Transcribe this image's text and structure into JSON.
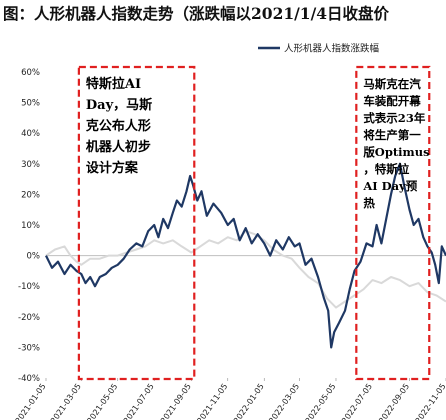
{
  "title": "图：人形机器人指数走势（涨跌幅以2021/1/4日收盘价",
  "chart_data": {
    "type": "line",
    "title": "图：人形机器人指数走势（涨跌幅以2021/1/4日收盘价",
    "xlabel": "",
    "ylabel": "",
    "ylim": [
      -40,
      60
    ],
    "yticks": [
      -40,
      -30,
      -20,
      -10,
      0,
      10,
      20,
      30,
      40,
      50,
      60
    ],
    "ytick_labels": [
      "-40%",
      "-30%",
      "-20%",
      "-10%",
      "0%",
      "10%",
      "20%",
      "30%",
      "40%",
      "50%",
      "60%"
    ],
    "xlim": [
      "2021-01-05",
      "2022-11-05"
    ],
    "xtick_labels": [
      "2021-01-05",
      "2021-03-05",
      "2021-05-05",
      "2021-07-05",
      "2021-09-05",
      "2021-11-05",
      "2022-01-05",
      "2022-03-05",
      "2022-05-05",
      "2022-07-05",
      "2022-09-05",
      "2022-11-05"
    ],
    "grid": false,
    "legend_position": "top-right",
    "series": [
      {
        "name": "人形机器人指数涨跌幅",
        "color": "#1f3864",
        "unit": "%",
        "points": [
          [
            "2021-01-05",
            0
          ],
          [
            "2021-01-15",
            -4
          ],
          [
            "2021-01-25",
            -2
          ],
          [
            "2021-02-05",
            -6
          ],
          [
            "2021-02-15",
            -3
          ],
          [
            "2021-02-25",
            -5
          ],
          [
            "2021-03-05",
            -6
          ],
          [
            "2021-03-12",
            -9
          ],
          [
            "2021-03-20",
            -7
          ],
          [
            "2021-03-28",
            -10
          ],
          [
            "2021-04-05",
            -7
          ],
          [
            "2021-04-15",
            -6
          ],
          [
            "2021-04-25",
            -4
          ],
          [
            "2021-05-05",
            -3
          ],
          [
            "2021-05-15",
            -1
          ],
          [
            "2021-05-25",
            2
          ],
          [
            "2021-06-05",
            4
          ],
          [
            "2021-06-15",
            3
          ],
          [
            "2021-06-25",
            8
          ],
          [
            "2021-07-05",
            10
          ],
          [
            "2021-07-12",
            6
          ],
          [
            "2021-07-20",
            12
          ],
          [
            "2021-07-28",
            9
          ],
          [
            "2021-08-05",
            14
          ],
          [
            "2021-08-12",
            18
          ],
          [
            "2021-08-20",
            16
          ],
          [
            "2021-08-28",
            21
          ],
          [
            "2021-09-03",
            26
          ],
          [
            "2021-09-08",
            23
          ],
          [
            "2021-09-15",
            18
          ],
          [
            "2021-09-22",
            21
          ],
          [
            "2021-10-01",
            13
          ],
          [
            "2021-10-12",
            17
          ],
          [
            "2021-10-25",
            14
          ],
          [
            "2021-11-05",
            10
          ],
          [
            "2021-11-15",
            12
          ],
          [
            "2021-11-25",
            5
          ],
          [
            "2021-12-05",
            9
          ],
          [
            "2021-12-15",
            4
          ],
          [
            "2021-12-25",
            7
          ],
          [
            "2022-01-05",
            4
          ],
          [
            "2022-01-15",
            0
          ],
          [
            "2022-01-25",
            5
          ],
          [
            "2022-02-05",
            2
          ],
          [
            "2022-02-15",
            6
          ],
          [
            "2022-02-25",
            3
          ],
          [
            "2022-03-05",
            4
          ],
          [
            "2022-03-15",
            -3
          ],
          [
            "2022-03-25",
            -1
          ],
          [
            "2022-04-05",
            -7
          ],
          [
            "2022-04-15",
            -14
          ],
          [
            "2022-04-22",
            -18
          ],
          [
            "2022-04-27",
            -30
          ],
          [
            "2022-05-02",
            -25
          ],
          [
            "2022-05-10",
            -22
          ],
          [
            "2022-05-20",
            -18
          ],
          [
            "2022-05-28",
            -11
          ],
          [
            "2022-06-05",
            -5
          ],
          [
            "2022-06-15",
            -2
          ],
          [
            "2022-06-25",
            4
          ],
          [
            "2022-07-05",
            3
          ],
          [
            "2022-07-12",
            10
          ],
          [
            "2022-07-20",
            4
          ],
          [
            "2022-07-28",
            12
          ],
          [
            "2022-08-05",
            20
          ],
          [
            "2022-08-12",
            26
          ],
          [
            "2022-08-20",
            30
          ],
          [
            "2022-08-27",
            23
          ],
          [
            "2022-09-05",
            15
          ],
          [
            "2022-09-12",
            10
          ],
          [
            "2022-09-20",
            12
          ],
          [
            "2022-09-28",
            6
          ],
          [
            "2022-10-05",
            3
          ],
          [
            "2022-10-12",
            1
          ],
          [
            "2022-10-18",
            -3
          ],
          [
            "2022-10-24",
            -9
          ],
          [
            "2022-10-29",
            3
          ],
          [
            "2022-11-05",
            0
          ]
        ]
      },
      {
        "name": "",
        "color": "#d9d9d9",
        "unit": "%",
        "points": [
          [
            "2021-01-05",
            0
          ],
          [
            "2021-01-20",
            2
          ],
          [
            "2021-02-05",
            3
          ],
          [
            "2021-02-15",
            0
          ],
          [
            "2021-02-25",
            -2
          ],
          [
            "2021-03-05",
            -3
          ],
          [
            "2021-03-20",
            -1
          ],
          [
            "2021-04-05",
            -1
          ],
          [
            "2021-04-20",
            0
          ],
          [
            "2021-05-05",
            0
          ],
          [
            "2021-05-20",
            1
          ],
          [
            "2021-06-05",
            2
          ],
          [
            "2021-06-20",
            3
          ],
          [
            "2021-07-05",
            5
          ],
          [
            "2021-07-20",
            4
          ],
          [
            "2021-08-05",
            5
          ],
          [
            "2021-08-20",
            3
          ],
          [
            "2021-09-05",
            1
          ],
          [
            "2021-09-20",
            3
          ],
          [
            "2021-10-05",
            5
          ],
          [
            "2021-10-20",
            4
          ],
          [
            "2021-11-05",
            6
          ],
          [
            "2021-11-20",
            5
          ],
          [
            "2021-12-05",
            8
          ],
          [
            "2021-12-20",
            7
          ],
          [
            "2022-01-05",
            5
          ],
          [
            "2022-01-20",
            2
          ],
          [
            "2022-02-05",
            0
          ],
          [
            "2022-02-20",
            -1
          ],
          [
            "2022-03-05",
            -4
          ],
          [
            "2022-03-20",
            -7
          ],
          [
            "2022-04-05",
            -9
          ],
          [
            "2022-04-20",
            -14
          ],
          [
            "2022-05-05",
            -17
          ],
          [
            "2022-05-20",
            -15
          ],
          [
            "2022-06-05",
            -13
          ],
          [
            "2022-06-20",
            -11
          ],
          [
            "2022-07-05",
            -8
          ],
          [
            "2022-07-20",
            -9
          ],
          [
            "2022-08-05",
            -7
          ],
          [
            "2022-08-20",
            -8
          ],
          [
            "2022-09-05",
            -10
          ],
          [
            "2022-09-20",
            -9
          ],
          [
            "2022-10-05",
            -12
          ],
          [
            "2022-10-20",
            -13
          ],
          [
            "2022-11-05",
            -15
          ]
        ]
      }
    ],
    "annotations": [
      {
        "from": "2021-03-01",
        "to": "2021-09-10",
        "lines": [
          "特斯拉AI",
          "Day，马斯",
          "克公布人形",
          "机器人初步",
          "设计方案"
        ]
      },
      {
        "from": "2022-06-08",
        "to": "2022-10-08",
        "lines": [
          "马斯克在汽",
          "车装配开幕",
          "式表示23年",
          "将生产第一",
          "版Optimus",
          "，特斯拉",
          "AI Day预",
          "热"
        ]
      }
    ]
  }
}
